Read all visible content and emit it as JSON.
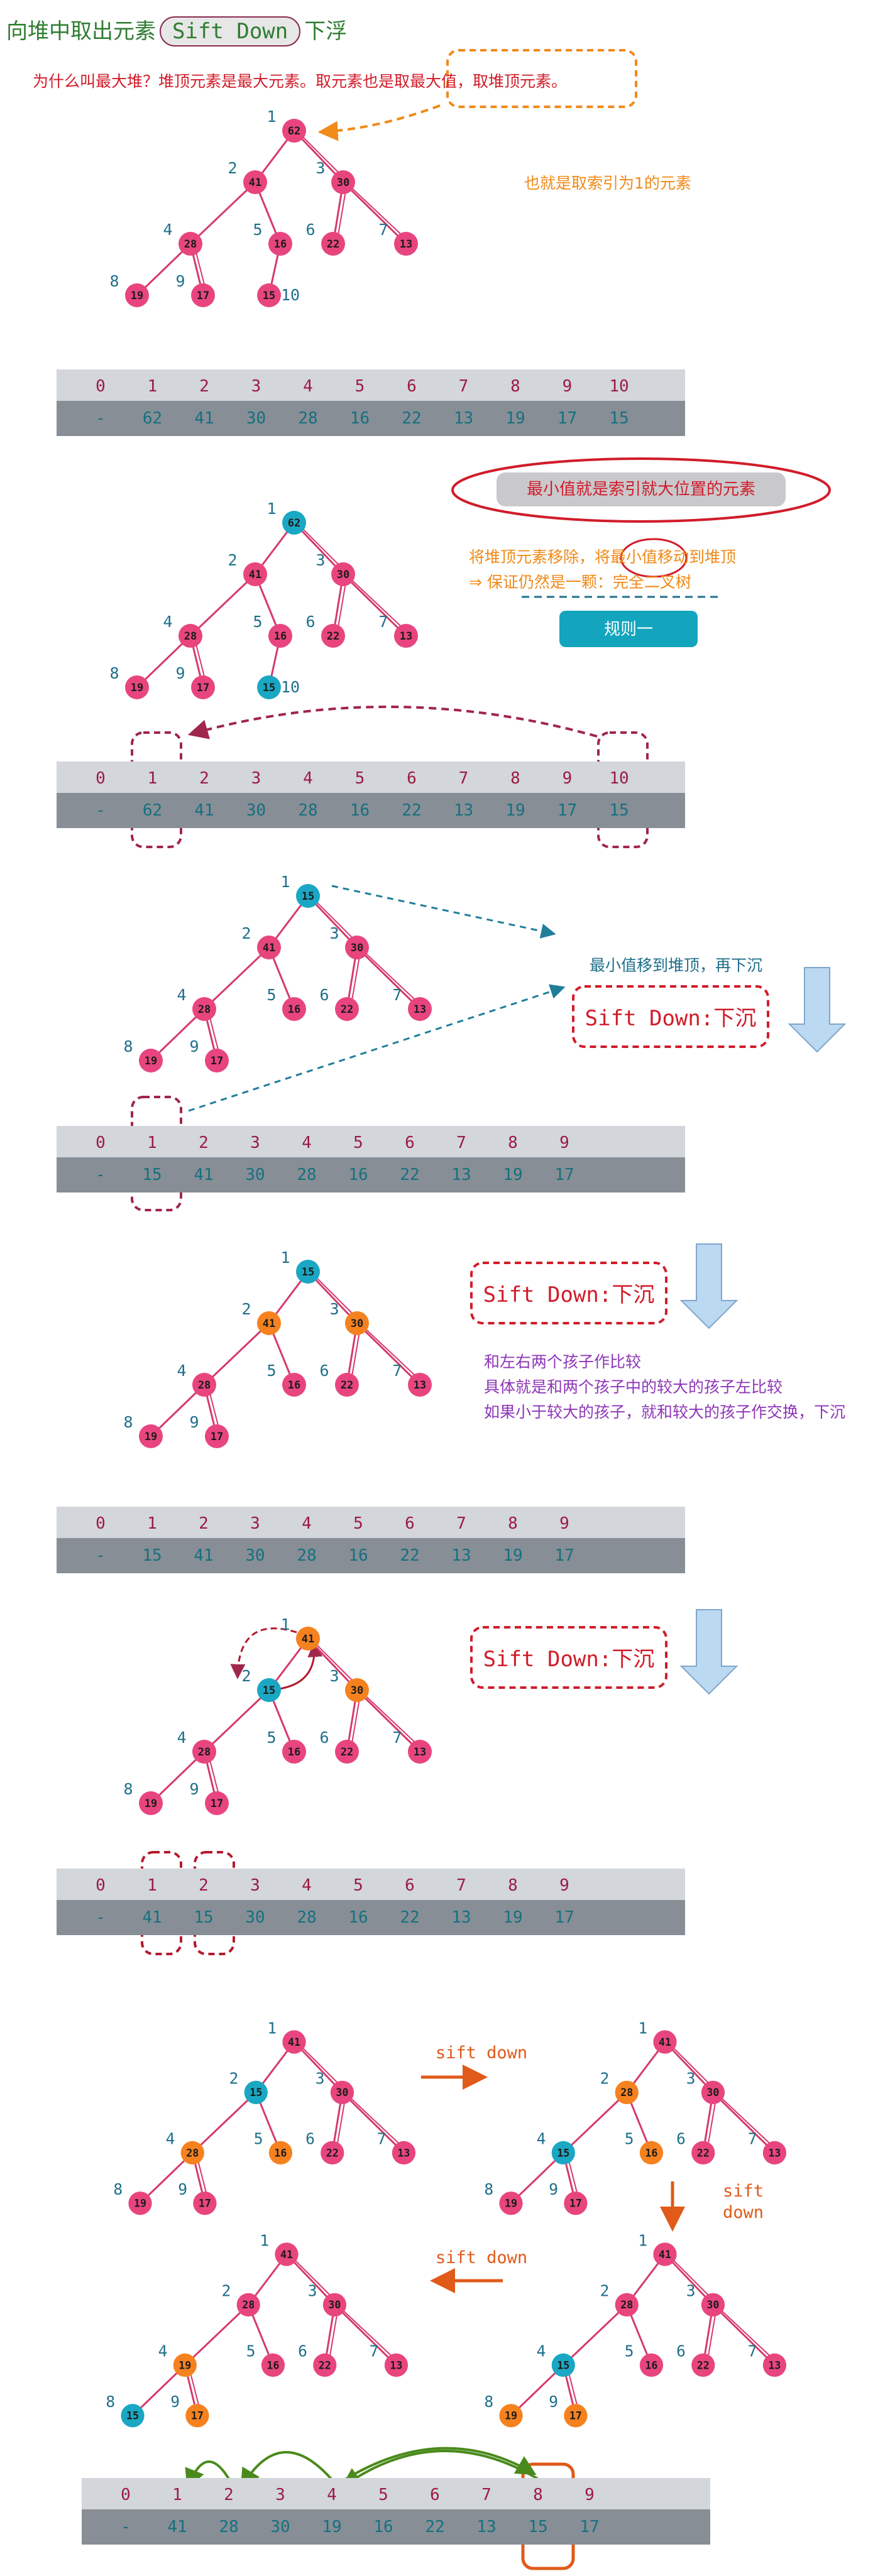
{
  "title": {
    "prefix": "向堆中取出元素",
    "highlight": "Sift Down",
    "suffix": "下浮"
  },
  "colors": {
    "node_pink": "#e8457e",
    "node_cyan": "#1aa7c3",
    "node_orange": "#f5821f",
    "edge": "#d63a6c",
    "index_label": "#1f6f8b",
    "annotation_red": "#d11c2a",
    "annotation_orange": "#f08a19",
    "annotation_purple": "#8e35b8",
    "annotation_green": "#2f7d32",
    "bar_top": "#d3d6db",
    "bar_bottom": "#878e96",
    "bar_index_text": "#9b1b45",
    "bar_value_text": "#16707f",
    "arrow_blue": "#bcd9f2"
  },
  "annotations": {
    "why_max_heap": "为什么叫最大堆？堆顶元素是最大元素。取元素也是取最大值，取堆顶元素。",
    "index_one": "也就是取索引为1的元素",
    "min_at_last": "最小值就是索引就大位置的元素",
    "remove_top_line1": "将堆顶元素移除，将最小值移动到堆顶",
    "remove_top_line2": "⇒  保证仍然是一颗：完全二叉树",
    "rule_one": "规则一",
    "move_then_sink": "最小值移到堆顶，再下沉",
    "sift_down_box": "Sift Down:下沉",
    "compare_line1": "和左右两个孩子作比较",
    "compare_line2": "具体就是和两个孩子中的较大的孩子左比较",
    "compare_line3": "如果小于较大的孩子，就和较大的孩子作交换，下沉",
    "sift_down_label": "sift down",
    "sift_down_vertical_1": "sift",
    "sift_down_vertical_2": "down"
  },
  "arrays": [
    {
      "indices": [
        "0",
        "1",
        "2",
        "3",
        "4",
        "5",
        "6",
        "7",
        "8",
        "9",
        "10"
      ],
      "values": [
        "-",
        "62",
        "41",
        "30",
        "28",
        "16",
        "22",
        "13",
        "19",
        "17",
        "15"
      ]
    },
    {
      "indices": [
        "0",
        "1",
        "2",
        "3",
        "4",
        "5",
        "6",
        "7",
        "8",
        "9",
        "10"
      ],
      "values": [
        "-",
        "62",
        "41",
        "30",
        "28",
        "16",
        "22",
        "13",
        "19",
        "17",
        "15"
      ]
    },
    {
      "indices": [
        "0",
        "1",
        "2",
        "3",
        "4",
        "5",
        "6",
        "7",
        "8",
        "9"
      ],
      "values": [
        "-",
        "15",
        "41",
        "30",
        "28",
        "16",
        "22",
        "13",
        "19",
        "17"
      ]
    },
    {
      "indices": [
        "0",
        "1",
        "2",
        "3",
        "4",
        "5",
        "6",
        "7",
        "8",
        "9"
      ],
      "values": [
        "-",
        "15",
        "41",
        "30",
        "28",
        "16",
        "22",
        "13",
        "19",
        "17"
      ]
    },
    {
      "indices": [
        "0",
        "1",
        "2",
        "3",
        "4",
        "5",
        "6",
        "7",
        "8",
        "9"
      ],
      "values": [
        "-",
        "41",
        "15",
        "30",
        "28",
        "16",
        "22",
        "13",
        "19",
        "17"
      ]
    },
    {
      "indices": [
        "0",
        "1",
        "2",
        "3",
        "4",
        "5",
        "6",
        "7",
        "8",
        "9"
      ],
      "values": [
        "-",
        "41",
        "28",
        "30",
        "19",
        "16",
        "22",
        "13",
        "15",
        "17"
      ]
    }
  ],
  "trees": [
    {
      "nodes": [
        {
          "i": "1",
          "v": "62",
          "c": "p"
        },
        {
          "i": "2",
          "v": "41",
          "c": "p"
        },
        {
          "i": "3",
          "v": "30",
          "c": "p"
        },
        {
          "i": "4",
          "v": "28",
          "c": "p"
        },
        {
          "i": "5",
          "v": "16",
          "c": "p"
        },
        {
          "i": "6",
          "v": "22",
          "c": "p"
        },
        {
          "i": "7",
          "v": "13",
          "c": "p"
        },
        {
          "i": "8",
          "v": "19",
          "c": "p"
        },
        {
          "i": "9",
          "v": "17",
          "c": "p"
        },
        {
          "i": "10",
          "v": "15",
          "c": "p"
        }
      ]
    },
    {
      "nodes": [
        {
          "i": "1",
          "v": "62",
          "c": "c"
        },
        {
          "i": "2",
          "v": "41",
          "c": "p"
        },
        {
          "i": "3",
          "v": "30",
          "c": "p"
        },
        {
          "i": "4",
          "v": "28",
          "c": "p"
        },
        {
          "i": "5",
          "v": "16",
          "c": "p"
        },
        {
          "i": "6",
          "v": "22",
          "c": "p"
        },
        {
          "i": "7",
          "v": "13",
          "c": "p"
        },
        {
          "i": "8",
          "v": "19",
          "c": "p"
        },
        {
          "i": "9",
          "v": "17",
          "c": "p"
        },
        {
          "i": "10",
          "v": "15",
          "c": "c"
        }
      ]
    },
    {
      "nodes": [
        {
          "i": "1",
          "v": "15",
          "c": "c"
        },
        {
          "i": "2",
          "v": "41",
          "c": "p"
        },
        {
          "i": "3",
          "v": "30",
          "c": "p"
        },
        {
          "i": "4",
          "v": "28",
          "c": "p"
        },
        {
          "i": "5",
          "v": "16",
          "c": "p"
        },
        {
          "i": "6",
          "v": "22",
          "c": "p"
        },
        {
          "i": "7",
          "v": "13",
          "c": "p"
        },
        {
          "i": "8",
          "v": "19",
          "c": "p"
        },
        {
          "i": "9",
          "v": "17",
          "c": "p"
        }
      ]
    },
    {
      "nodes": [
        {
          "i": "1",
          "v": "15",
          "c": "c"
        },
        {
          "i": "2",
          "v": "41",
          "c": "o"
        },
        {
          "i": "3",
          "v": "30",
          "c": "o"
        },
        {
          "i": "4",
          "v": "28",
          "c": "p"
        },
        {
          "i": "5",
          "v": "16",
          "c": "p"
        },
        {
          "i": "6",
          "v": "22",
          "c": "p"
        },
        {
          "i": "7",
          "v": "13",
          "c": "p"
        },
        {
          "i": "8",
          "v": "19",
          "c": "p"
        },
        {
          "i": "9",
          "v": "17",
          "c": "p"
        }
      ]
    },
    {
      "nodes": [
        {
          "i": "1",
          "v": "41",
          "c": "o"
        },
        {
          "i": "2",
          "v": "15",
          "c": "c"
        },
        {
          "i": "3",
          "v": "30",
          "c": "o"
        },
        {
          "i": "4",
          "v": "28",
          "c": "p"
        },
        {
          "i": "5",
          "v": "16",
          "c": "p"
        },
        {
          "i": "6",
          "v": "22",
          "c": "p"
        },
        {
          "i": "7",
          "v": "13",
          "c": "p"
        },
        {
          "i": "8",
          "v": "19",
          "c": "p"
        },
        {
          "i": "9",
          "v": "17",
          "c": "p"
        }
      ]
    },
    {
      "nodes": [
        {
          "i": "1",
          "v": "41",
          "c": "p"
        },
        {
          "i": "2",
          "v": "15",
          "c": "c"
        },
        {
          "i": "3",
          "v": "30",
          "c": "p"
        },
        {
          "i": "4",
          "v": "28",
          "c": "o"
        },
        {
          "i": "5",
          "v": "16",
          "c": "o"
        },
        {
          "i": "6",
          "v": "22",
          "c": "p"
        },
        {
          "i": "7",
          "v": "13",
          "c": "p"
        },
        {
          "i": "8",
          "v": "19",
          "c": "p"
        },
        {
          "i": "9",
          "v": "17",
          "c": "p"
        }
      ]
    },
    {
      "nodes": [
        {
          "i": "1",
          "v": "41",
          "c": "p"
        },
        {
          "i": "2",
          "v": "28",
          "c": "o"
        },
        {
          "i": "3",
          "v": "30",
          "c": "p"
        },
        {
          "i": "4",
          "v": "15",
          "c": "c"
        },
        {
          "i": "5",
          "v": "16",
          "c": "o"
        },
        {
          "i": "6",
          "v": "22",
          "c": "p"
        },
        {
          "i": "7",
          "v": "13",
          "c": "p"
        },
        {
          "i": "8",
          "v": "19",
          "c": "p"
        },
        {
          "i": "9",
          "v": "17",
          "c": "p"
        }
      ]
    },
    {
      "nodes": [
        {
          "i": "1",
          "v": "41",
          "c": "p"
        },
        {
          "i": "2",
          "v": "28",
          "c": "p"
        },
        {
          "i": "3",
          "v": "30",
          "c": "p"
        },
        {
          "i": "4",
          "v": "15",
          "c": "c"
        },
        {
          "i": "5",
          "v": "16",
          "c": "p"
        },
        {
          "i": "6",
          "v": "22",
          "c": "p"
        },
        {
          "i": "7",
          "v": "13",
          "c": "p"
        },
        {
          "i": "8",
          "v": "19",
          "c": "o"
        },
        {
          "i": "9",
          "v": "17",
          "c": "o"
        }
      ]
    },
    {
      "nodes": [
        {
          "i": "1",
          "v": "41",
          "c": "p"
        },
        {
          "i": "2",
          "v": "28",
          "c": "p"
        },
        {
          "i": "3",
          "v": "30",
          "c": "p"
        },
        {
          "i": "4",
          "v": "19",
          "c": "o"
        },
        {
          "i": "5",
          "v": "16",
          "c": "p"
        },
        {
          "i": "6",
          "v": "22",
          "c": "p"
        },
        {
          "i": "7",
          "v": "13",
          "c": "p"
        },
        {
          "i": "8",
          "v": "15",
          "c": "c"
        },
        {
          "i": "9",
          "v": "17",
          "c": "o"
        }
      ]
    }
  ]
}
